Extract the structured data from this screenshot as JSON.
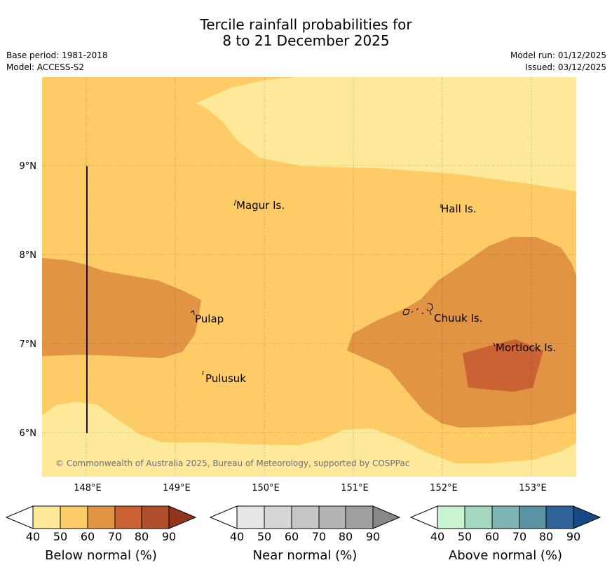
{
  "title": {
    "line1": "Tercile rainfall probabilities for",
    "line2": "8 to 21 December 2025"
  },
  "meta": {
    "base_period": "Base period: 1981-2018",
    "model": "Model: ACCESS-S2",
    "model_run": "Model run: 01/12/2025",
    "issued": "Issued: 03/12/2025"
  },
  "map": {
    "lat_labels": [
      "9°N",
      "8°N",
      "7°N",
      "6°N"
    ],
    "lon_labels": [
      "148°E",
      "149°E",
      "150°E",
      "151°E",
      "152°E",
      "153°E"
    ],
    "places": [
      "Magur Is.",
      "Hall Is.",
      "Pulap",
      "Chuuk Is.",
      "Mortlock Is.",
      "Pulusuk"
    ],
    "copyright": "© Commonwealth of Australia 2025, Bureau of Meteorology, supported by COSPPac",
    "colors": {
      "below_40_50": "#fee99b",
      "below_50_60": "#fdcc66",
      "below_60_70": "#e09444",
      "below_70_80": "#cb6233"
    }
  },
  "legend": {
    "below": {
      "title": "Below normal (%)",
      "ticks": [
        "40",
        "50",
        "60",
        "70",
        "80",
        "90"
      ],
      "colors": [
        "#fee99b",
        "#fdcc66",
        "#e09444",
        "#cb6233",
        "#b04d2a",
        "#93341f"
      ]
    },
    "near": {
      "title": "Near normal (%)",
      "ticks": [
        "40",
        "50",
        "60",
        "70",
        "80",
        "90"
      ],
      "colors": [
        "#e6e6e6",
        "#d6d6d6",
        "#c6c6c6",
        "#b4b4b4",
        "#a0a0a0",
        "#888888"
      ]
    },
    "above": {
      "title": "Above normal (%)",
      "ticks": [
        "40",
        "50",
        "60",
        "70",
        "80",
        "90"
      ],
      "colors": [
        "#c8f5d0",
        "#a4d8c0",
        "#7fb4b4",
        "#5b93a4",
        "#2f6298",
        "#154a84"
      ]
    }
  }
}
